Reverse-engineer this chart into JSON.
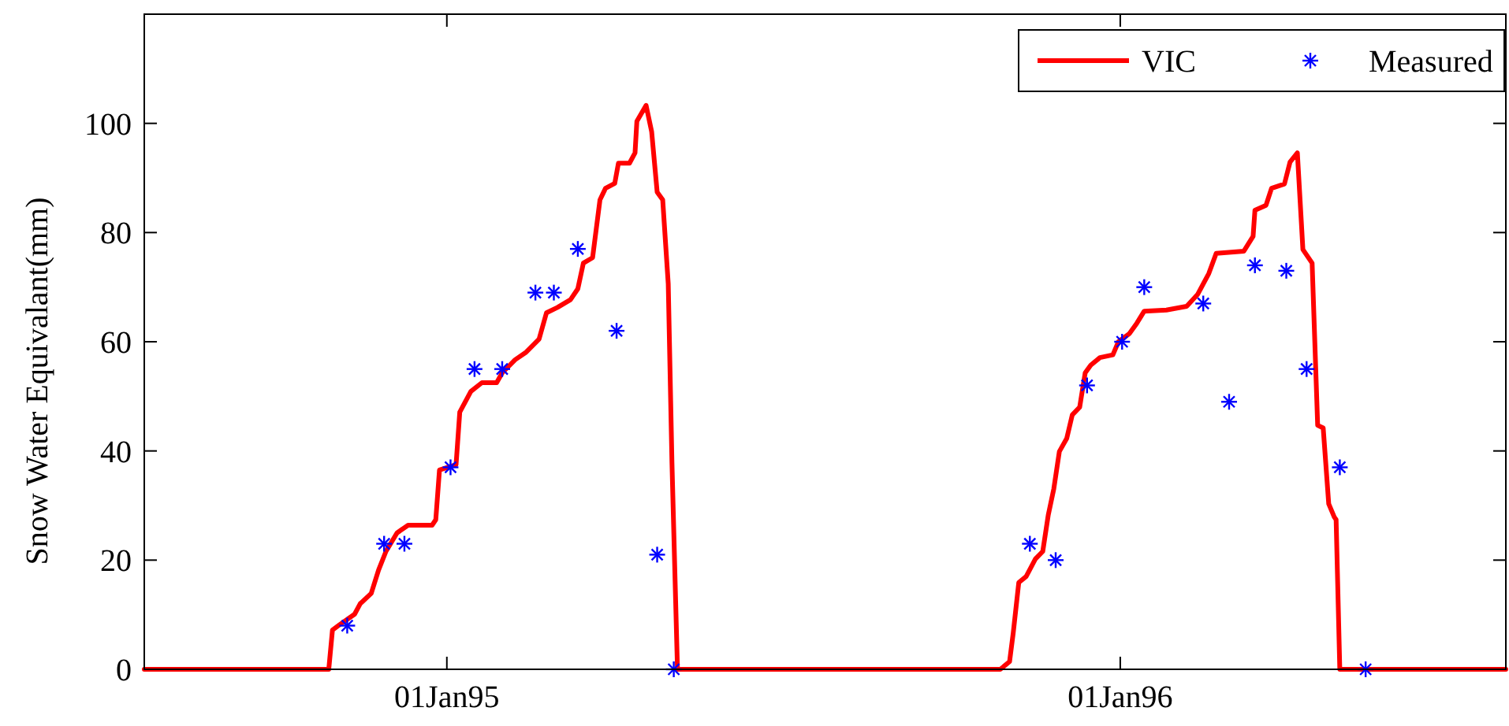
{
  "chart_data": {
    "type": "line",
    "ylabel": "Snow Water Equivalant(mm)",
    "xlim": [
      "1994-07-21",
      "1996-07-28"
    ],
    "xticks": [
      {
        "value": "1995-01-01",
        "label": "01Jan95"
      },
      {
        "value": "1996-01-01",
        "label": "01Jan96"
      }
    ],
    "ylim": [
      0,
      120
    ],
    "yticks": [
      0,
      20,
      40,
      60,
      80,
      100
    ],
    "legend": "top right",
    "series": [
      {
        "name": "VIC",
        "color": "#ff0000",
        "line_style": "solid",
        "marker": "none",
        "x": [
          "1994-07-21",
          "1994-10-29",
          "1994-10-31",
          "1994-11-04",
          "1994-11-12",
          "1994-11-15",
          "1994-11-21",
          "1994-11-25",
          "1994-11-29",
          "1994-12-05",
          "1994-12-11",
          "1994-12-24",
          "1994-12-26",
          "1994-12-28",
          "1995-01-06",
          "1995-01-08",
          "1995-01-14",
          "1995-01-20",
          "1995-01-28",
          "1995-01-31",
          "1995-02-07",
          "1995-02-13",
          "1995-02-20",
          "1995-02-24",
          "1995-03-02",
          "1995-03-09",
          "1995-03-13",
          "1995-03-16",
          "1995-03-21",
          "1995-03-25",
          "1995-03-28",
          "1995-04-02",
          "1995-04-04",
          "1995-04-10",
          "1995-04-13",
          "1995-04-14",
          "1995-04-19",
          "1995-04-22",
          "1995-04-25",
          "1995-04-28",
          "1995-05-01",
          "1995-05-03",
          "1995-05-06",
          "1995-10-28",
          "1995-11-02",
          "1995-11-04",
          "1995-11-07",
          "1995-11-11",
          "1995-11-16",
          "1995-11-20",
          "1995-11-23",
          "1995-11-26",
          "1995-11-29",
          "1995-12-03",
          "1995-12-06",
          "1995-12-10",
          "1995-12-13",
          "1995-12-16",
          "1995-12-21",
          "1995-12-28",
          "1995-12-31",
          "1996-01-06",
          "1996-01-10",
          "1996-01-14",
          "1996-01-26",
          "1996-02-06",
          "1996-02-12",
          "1996-02-18",
          "1996-02-22",
          "1996-03-08",
          "1996-03-13",
          "1996-03-14",
          "1996-03-20",
          "1996-03-23",
          "1996-03-30",
          "1996-04-02",
          "1996-04-06",
          "1996-04-09",
          "1996-04-14",
          "1996-04-17",
          "1996-04-20",
          "1996-04-23",
          "1996-04-26",
          "1996-04-27",
          "1996-04-29",
          "1996-07-28"
        ],
        "values": [
          0,
          0,
          7.2,
          8.2,
          10.1,
          12,
          13.9,
          18.2,
          21.6,
          25,
          26.4,
          26.4,
          27.4,
          36.5,
          37.5,
          47.1,
          50.9,
          52.5,
          52.5,
          54.3,
          56.7,
          58.1,
          60.5,
          65.3,
          66.3,
          67.7,
          69.7,
          74.4,
          75.4,
          86,
          88.1,
          89,
          92.7,
          92.7,
          94.6,
          100.4,
          103.3,
          98.5,
          87.4,
          86,
          70.6,
          38,
          0,
          0,
          1.4,
          6.7,
          15.9,
          17,
          20.2,
          21.6,
          28.3,
          33.1,
          39.9,
          42.3,
          46.6,
          48,
          54.3,
          55.7,
          57.1,
          57.6,
          60,
          61.5,
          63.4,
          65.6,
          65.8,
          66.5,
          68.7,
          72.5,
          76.2,
          76.6,
          79.3,
          84.1,
          85,
          88.1,
          88.9,
          92.9,
          94.6,
          76.9,
          74.4,
          44.7,
          44.2,
          30.3,
          27.9,
          27.4,
          0,
          0
        ]
      },
      {
        "name": "Measured",
        "type": "scatter",
        "color": "#0000ff",
        "marker": "cross",
        "x": [
          "1994-11-08",
          "1994-11-28",
          "1994-12-09",
          "1995-01-03",
          "1995-01-16",
          "1995-01-31",
          "1995-02-18",
          "1995-02-28",
          "1995-03-13",
          "1995-04-03",
          "1995-04-25",
          "1995-05-04",
          "1995-11-13",
          "1995-11-27",
          "1995-12-14",
          "1996-01-02",
          "1996-01-14",
          "1996-02-15",
          "1996-02-29",
          "1996-03-14",
          "1996-03-31",
          "1996-04-11",
          "1996-04-29",
          "1996-05-13"
        ],
        "values": [
          8,
          23,
          23,
          37,
          55,
          55,
          69,
          69,
          77,
          62,
          21,
          0,
          23,
          20,
          52,
          60,
          70,
          67,
          49,
          74,
          73,
          55,
          37,
          0
        ]
      }
    ]
  }
}
